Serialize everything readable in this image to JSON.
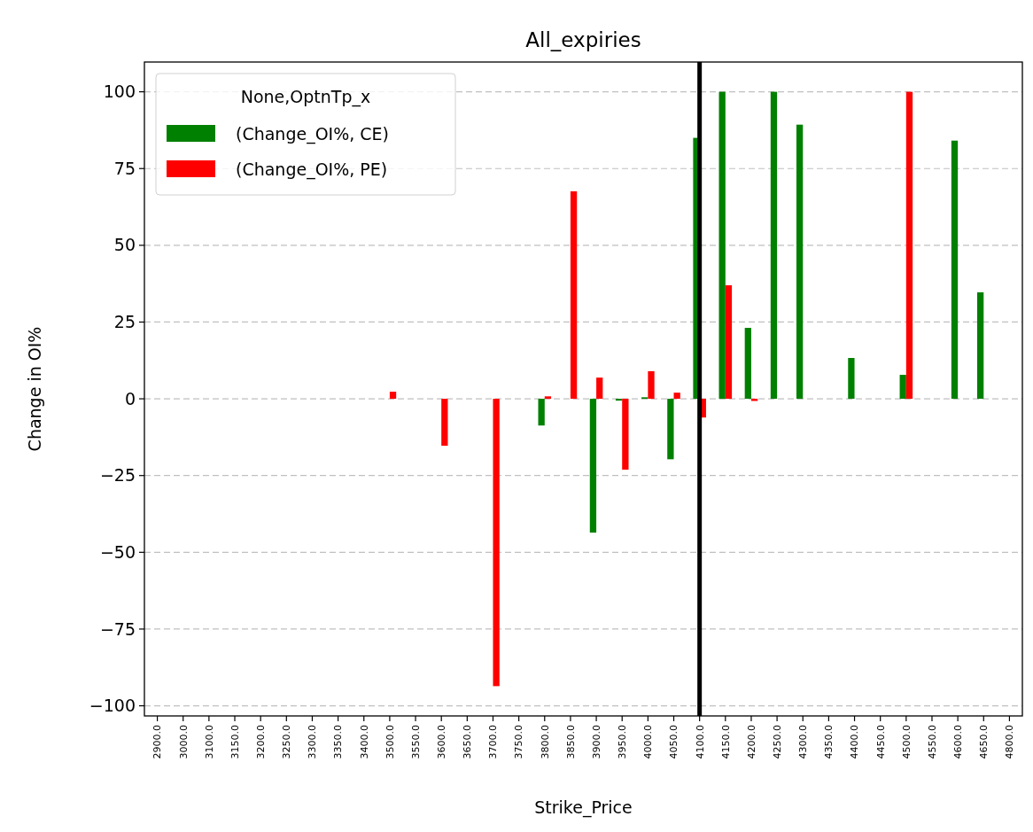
{
  "chart_data": {
    "type": "bar",
    "title": "All_expiries",
    "xlabel": "Strike_Price",
    "ylabel": "Change in OI%",
    "legend_title": "None,OptnTp_x",
    "categories": [
      "2900.0",
      "3000.0",
      "3100.0",
      "3150.0",
      "3200.0",
      "3250.0",
      "3300.0",
      "3350.0",
      "3400.0",
      "3500.0",
      "3550.0",
      "3600.0",
      "3650.0",
      "3700.0",
      "3750.0",
      "3800.0",
      "3850.0",
      "3900.0",
      "3950.0",
      "4000.0",
      "4050.0",
      "4100.0",
      "4150.0",
      "4200.0",
      "4250.0",
      "4300.0",
      "4350.0",
      "4400.0",
      "4450.0",
      "4500.0",
      "4550.0",
      "4600.0",
      "4650.0",
      "4800.0"
    ],
    "series": [
      {
        "name": "(Change_OI%, CE)",
        "color": "#008000",
        "values": [
          null,
          null,
          null,
          null,
          null,
          null,
          null,
          null,
          null,
          null,
          null,
          null,
          null,
          null,
          null,
          -8.7,
          null,
          -43.6,
          -0.6,
          0.5,
          -19.7,
          85,
          100,
          23.1,
          100,
          89.3,
          null,
          13.3,
          null,
          7.8,
          null,
          84.1,
          34.7,
          null
        ]
      },
      {
        "name": "(Change_OI%, PE)",
        "color": "#ff0000",
        "values": [
          null,
          null,
          null,
          null,
          null,
          null,
          null,
          null,
          null,
          2.3,
          null,
          -15.3,
          null,
          -93.6,
          null,
          0.8,
          67.6,
          6.9,
          -23.1,
          9.0,
          2.0,
          -6.1,
          37,
          -0.7,
          null,
          null,
          null,
          null,
          null,
          100,
          null,
          null,
          null,
          null
        ]
      }
    ],
    "ylim": [
      -103.3,
      109.7
    ],
    "yticks": [
      {
        "value": -100,
        "label": "−100"
      },
      {
        "value": -75,
        "label": "−75"
      },
      {
        "value": -50,
        "label": "−50"
      },
      {
        "value": -25,
        "label": "−25"
      },
      0,
      25,
      50,
      75,
      100
    ],
    "ref_lines": [
      {
        "axis": "x",
        "value": "4100.0",
        "color": "#000000"
      }
    ],
    "grid": "y",
    "legend": "top left"
  }
}
